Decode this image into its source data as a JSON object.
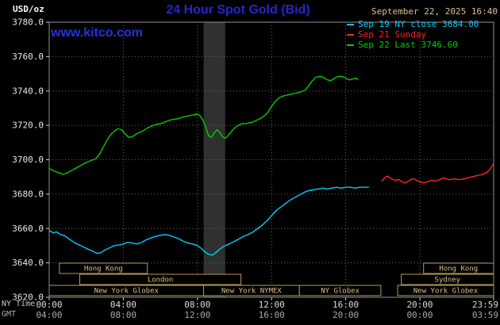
{
  "header": {
    "unit_label": "USD/oz",
    "title": "24 Hour Spot Gold (Bid)",
    "date": "September 22, 2025 16:40",
    "watermark": "www.kitco.com"
  },
  "footer": {
    "ny_label": "NY Time",
    "gmt_label": "GMT"
  },
  "colors": {
    "background": "#000000",
    "title": "#2626d0",
    "link": "#2233dd",
    "date": "#d9c08c",
    "unit": "#ffffff",
    "grid": "#686868",
    "axis_text": "#e0e0e0",
    "session_border": "#b39a55",
    "session_text": "#d9c08c",
    "series_sep19": "#00ccff",
    "series_sep21": "#ff2222",
    "series_sep22": "#00cc00"
  },
  "chart_data": {
    "type": "line",
    "title": "24 Hour Spot Gold (Bid)",
    "ylabel": "USD/oz",
    "xlabel_rows": [
      "NY Time",
      "GMT"
    ],
    "grid": true,
    "legend_position": "top-right",
    "ylim": [
      3620,
      3780
    ],
    "yticks": [
      3620,
      3640,
      3660,
      3680,
      3700,
      3720,
      3740,
      3760,
      3780
    ],
    "x_end_hour": 23.983,
    "xticks": [
      {
        "hour": 0,
        "ny": "00:00",
        "gmt": "04:00"
      },
      {
        "hour": 4,
        "ny": "04:00",
        "gmt": "08:00"
      },
      {
        "hour": 8,
        "ny": "08:00",
        "gmt": "12:00"
      },
      {
        "hour": 12,
        "ny": "12:00",
        "gmt": "16:00"
      },
      {
        "hour": 16,
        "ny": "16:00",
        "gmt": "20:00"
      },
      {
        "hour": 20,
        "ny": "20:00",
        "gmt": "00:00"
      },
      {
        "hour": 23.983,
        "ny": "23:59",
        "gmt": "03:59"
      }
    ],
    "bands": [
      {
        "start": 8.33,
        "end": 9.5,
        "color": "#303030"
      }
    ],
    "sessions": [
      {
        "label": "Hong Kong",
        "row": 0,
        "start": 0.55,
        "end": 5.3
      },
      {
        "label": "Hong Kong",
        "row": 0,
        "start": 20.2,
        "end": 23.983
      },
      {
        "label": "London",
        "row": 1,
        "start": 1.65,
        "end": 10.35
      },
      {
        "label": "Sydney",
        "row": 1,
        "start": 19.0,
        "end": 23.983
      },
      {
        "label": "New York Globex",
        "row": 2,
        "start": 0,
        "end": 8.33
      },
      {
        "label": "New York NYMEX",
        "row": 2,
        "start": 8.33,
        "end": 13.5
      },
      {
        "label": "NY Globex",
        "row": 2,
        "start": 13.5,
        "end": 17.9
      },
      {
        "label": "New York Globex",
        "row": 2,
        "start": 18.8,
        "end": 23.983
      }
    ],
    "series": [
      {
        "name": "Sep 19 NY close 3684.00",
        "color": "#00ccff",
        "close_value": 3684.0,
        "points": [
          [
            0,
            3659
          ],
          [
            0.2,
            3657.5
          ],
          [
            0.4,
            3658
          ],
          [
            0.6,
            3656.5
          ],
          [
            0.8,
            3656
          ],
          [
            1,
            3654.5
          ],
          [
            1.2,
            3653
          ],
          [
            1.4,
            3651.5
          ],
          [
            1.6,
            3650.5
          ],
          [
            1.8,
            3649.5
          ],
          [
            2,
            3648.5
          ],
          [
            2.2,
            3647.5
          ],
          [
            2.4,
            3646.5
          ],
          [
            2.6,
            3645.5
          ],
          [
            2.8,
            3646
          ],
          [
            3,
            3647.5
          ],
          [
            3.2,
            3648.5
          ],
          [
            3.5,
            3650
          ],
          [
            3.8,
            3650.5
          ],
          [
            4,
            3651
          ],
          [
            4.25,
            3652
          ],
          [
            4.5,
            3651.5
          ],
          [
            4.75,
            3651
          ],
          [
            5,
            3652
          ],
          [
            5.25,
            3653.5
          ],
          [
            5.5,
            3654.5
          ],
          [
            5.75,
            3655.5
          ],
          [
            6,
            3656
          ],
          [
            6.25,
            3656.5
          ],
          [
            6.5,
            3656
          ],
          [
            6.75,
            3655
          ],
          [
            7,
            3654
          ],
          [
            7.25,
            3652.5
          ],
          [
            7.5,
            3651.5
          ],
          [
            7.75,
            3651
          ],
          [
            8,
            3650
          ],
          [
            8.2,
            3648.5
          ],
          [
            8.4,
            3646.5
          ],
          [
            8.6,
            3645
          ],
          [
            8.8,
            3644.5
          ],
          [
            9,
            3646
          ],
          [
            9.2,
            3648
          ],
          [
            9.4,
            3649.5
          ],
          [
            9.6,
            3650.5
          ],
          [
            9.8,
            3651.5
          ],
          [
            10,
            3652.5
          ],
          [
            10.25,
            3654
          ],
          [
            10.5,
            3655.5
          ],
          [
            10.75,
            3656.5
          ],
          [
            11,
            3658
          ],
          [
            11.25,
            3660
          ],
          [
            11.5,
            3662
          ],
          [
            11.75,
            3664.5
          ],
          [
            12,
            3667.5
          ],
          [
            12.25,
            3670.5
          ],
          [
            12.5,
            3672.5
          ],
          [
            12.75,
            3674.5
          ],
          [
            13,
            3676.5
          ],
          [
            13.25,
            3678
          ],
          [
            13.5,
            3679.5
          ],
          [
            13.75,
            3681
          ],
          [
            14,
            3682
          ],
          [
            14.25,
            3682.5
          ],
          [
            14.5,
            3683
          ],
          [
            14.75,
            3683.5
          ],
          [
            15,
            3683
          ],
          [
            15.25,
            3683.5
          ],
          [
            15.5,
            3684
          ],
          [
            15.75,
            3683.5
          ],
          [
            16,
            3684
          ],
          [
            16.25,
            3684
          ],
          [
            16.5,
            3683.5
          ],
          [
            16.75,
            3684
          ],
          [
            17,
            3684
          ],
          [
            17.25,
            3684
          ]
        ]
      },
      {
        "name": "Sep 21 Sunday",
        "color": "#ff2222",
        "points": [
          [
            17.95,
            3687.5
          ],
          [
            18.1,
            3689.5
          ],
          [
            18.25,
            3690.5
          ],
          [
            18.4,
            3689.5
          ],
          [
            18.55,
            3688.5
          ],
          [
            18.7,
            3688
          ],
          [
            18.85,
            3688.5
          ],
          [
            19,
            3687.5
          ],
          [
            19.15,
            3686.5
          ],
          [
            19.3,
            3687
          ],
          [
            19.45,
            3688
          ],
          [
            19.6,
            3689
          ],
          [
            19.75,
            3688.5
          ],
          [
            19.9,
            3687.5
          ],
          [
            20.05,
            3687
          ],
          [
            20.2,
            3686.5
          ],
          [
            20.35,
            3687
          ],
          [
            20.5,
            3687.5
          ],
          [
            20.65,
            3688
          ],
          [
            20.8,
            3687.5
          ],
          [
            20.95,
            3688
          ],
          [
            21.1,
            3688.5
          ],
          [
            21.25,
            3689.5
          ],
          [
            21.4,
            3689
          ],
          [
            21.55,
            3688.5
          ],
          [
            21.7,
            3688.5
          ],
          [
            21.85,
            3689
          ],
          [
            22,
            3688.5
          ],
          [
            22.2,
            3688.5
          ],
          [
            22.4,
            3689
          ],
          [
            22.6,
            3689.5
          ],
          [
            22.8,
            3690
          ],
          [
            23,
            3690.5
          ],
          [
            23.2,
            3691
          ],
          [
            23.4,
            3691.5
          ],
          [
            23.6,
            3692.5
          ],
          [
            23.75,
            3694
          ],
          [
            23.85,
            3695.5
          ],
          [
            23.92,
            3697
          ],
          [
            23.98,
            3697.5
          ]
        ]
      },
      {
        "name": "Sep 22 Last 3746.60",
        "color": "#00cc00",
        "last_value": 3746.6,
        "points": [
          [
            0,
            3695
          ],
          [
            0.25,
            3693.5
          ],
          [
            0.5,
            3692.5
          ],
          [
            0.75,
            3691.5
          ],
          [
            1,
            3692.5
          ],
          [
            1.25,
            3694
          ],
          [
            1.5,
            3695.5
          ],
          [
            1.75,
            3697
          ],
          [
            2,
            3698.5
          ],
          [
            2.25,
            3699.5
          ],
          [
            2.5,
            3700.5
          ],
          [
            2.7,
            3703
          ],
          [
            2.9,
            3707
          ],
          [
            3.1,
            3711
          ],
          [
            3.3,
            3714.5
          ],
          [
            3.5,
            3716.5
          ],
          [
            3.7,
            3718
          ],
          [
            3.9,
            3717.5
          ],
          [
            4.1,
            3715
          ],
          [
            4.3,
            3713
          ],
          [
            4.5,
            3713.5
          ],
          [
            4.7,
            3715
          ],
          [
            4.9,
            3716
          ],
          [
            5.1,
            3717
          ],
          [
            5.3,
            3718.5
          ],
          [
            5.5,
            3719.5
          ],
          [
            5.75,
            3720.5
          ],
          [
            6,
            3721
          ],
          [
            6.25,
            3722
          ],
          [
            6.5,
            3723
          ],
          [
            6.75,
            3723.5
          ],
          [
            7,
            3724
          ],
          [
            7.25,
            3725
          ],
          [
            7.5,
            3725.5
          ],
          [
            7.75,
            3726
          ],
          [
            8,
            3726.5
          ],
          [
            8.15,
            3725.5
          ],
          [
            8.3,
            3723
          ],
          [
            8.45,
            3719
          ],
          [
            8.6,
            3714
          ],
          [
            8.75,
            3713
          ],
          [
            8.9,
            3715.5
          ],
          [
            9.05,
            3717.5
          ],
          [
            9.2,
            3716
          ],
          [
            9.35,
            3713.5
          ],
          [
            9.5,
            3712.5
          ],
          [
            9.65,
            3714
          ],
          [
            9.8,
            3716
          ],
          [
            10,
            3718.5
          ],
          [
            10.2,
            3720
          ],
          [
            10.4,
            3721
          ],
          [
            10.6,
            3721
          ],
          [
            10.8,
            3721.5
          ],
          [
            11,
            3722
          ],
          [
            11.2,
            3723
          ],
          [
            11.4,
            3724
          ],
          [
            11.6,
            3725.5
          ],
          [
            11.8,
            3727.5
          ],
          [
            12,
            3731
          ],
          [
            12.2,
            3734
          ],
          [
            12.4,
            3736
          ],
          [
            12.6,
            3737
          ],
          [
            12.8,
            3737.5
          ],
          [
            13,
            3738
          ],
          [
            13.2,
            3738.5
          ],
          [
            13.4,
            3739
          ],
          [
            13.6,
            3739.5
          ],
          [
            13.8,
            3740.5
          ],
          [
            14,
            3743
          ],
          [
            14.2,
            3746
          ],
          [
            14.4,
            3748
          ],
          [
            14.6,
            3748.5
          ],
          [
            14.8,
            3748
          ],
          [
            15,
            3746.5
          ],
          [
            15.2,
            3746
          ],
          [
            15.4,
            3747.5
          ],
          [
            15.6,
            3748.5
          ],
          [
            15.8,
            3748.5
          ],
          [
            16,
            3747.5
          ],
          [
            16.2,
            3746.5
          ],
          [
            16.4,
            3747
          ],
          [
            16.55,
            3747.5
          ],
          [
            16.67,
            3746.6
          ]
        ]
      }
    ]
  }
}
